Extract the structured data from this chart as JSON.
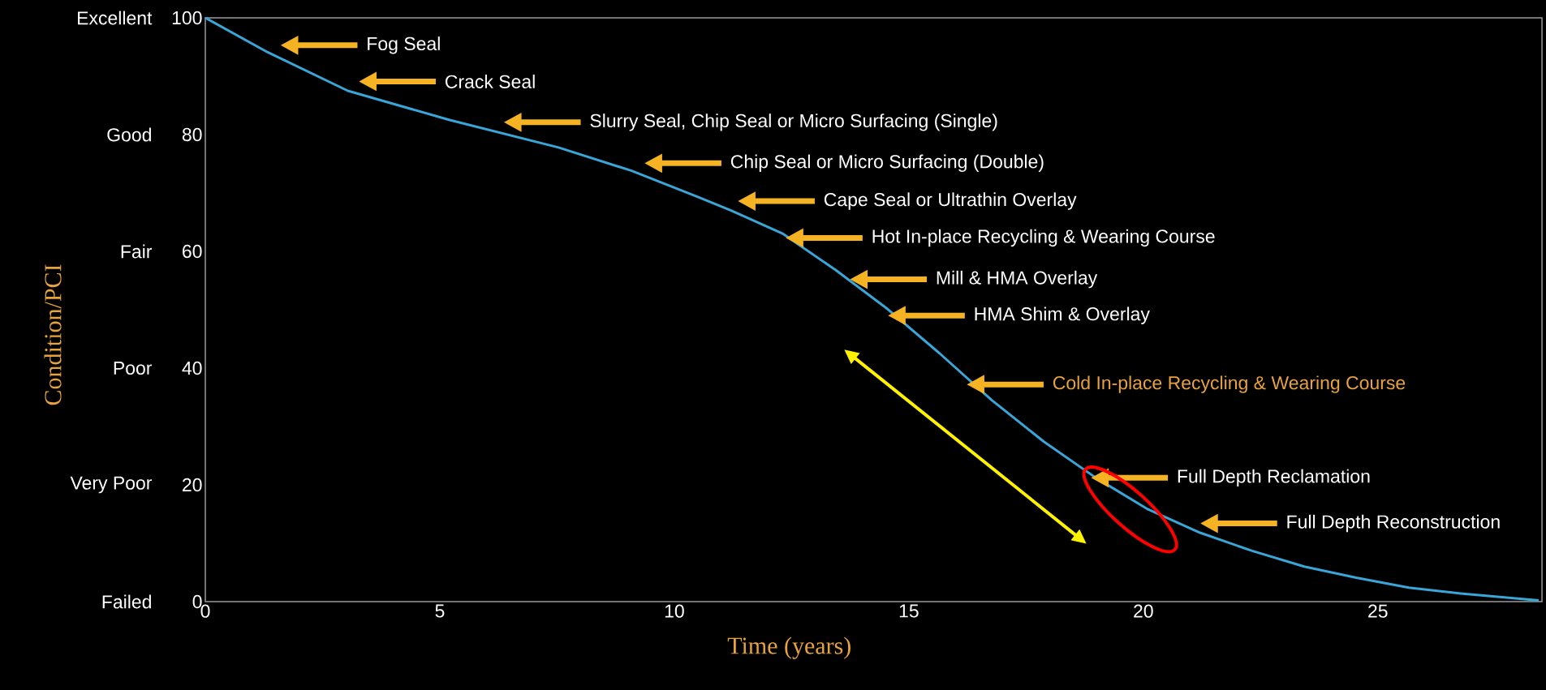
{
  "chart_data": {
    "type": "line",
    "xlabel": "Time (years)",
    "ylabel": "Condition/PCI",
    "xlim": [
      0,
      28.5
    ],
    "xticks": [
      0,
      5,
      10,
      15,
      20,
      25
    ],
    "ylim": [
      0,
      100
    ],
    "yticks": [
      0,
      20,
      40,
      60,
      80,
      100
    ],
    "grid": false,
    "marker": "none",
    "line_style": "solid",
    "series": [
      {
        "color": "#3aa6d8",
        "x": [
          0,
          1.33,
          3.04,
          5.21,
          7.53,
          9.09,
          10.48,
          11.21,
          12.32,
          13.44,
          14.55,
          15.66,
          16.77,
          17.88,
          18.99,
          20.1,
          21.21,
          22.32,
          23.43,
          24.54,
          25.66,
          26.77,
          28.43
        ],
        "values": [
          100,
          94.1,
          87.5,
          82.5,
          77.8,
          73.8,
          69.4,
          67.0,
          63.0,
          56.8,
          50.1,
          42.5,
          34.5,
          27.4,
          21.2,
          15.8,
          11.8,
          8.7,
          6.0,
          4.1,
          2.4,
          1.4,
          0.2
        ]
      }
    ],
    "annotations": [
      "Fog Seal",
      "Crack Seal",
      "Slurry Seal, Chip Seal or Micro Surfacing (Single)",
      "Chip Seal or Micro Surfacing (Double)",
      "Cape Seal or Ultrathin Overlay",
      "Hot In-place Recycling & Wearing Course",
      "Mill & HMA Overlay",
      "HMA Shim & Overlay",
      "Cold In-place Recycling & Wearing Course",
      "Full Depth Reclamation",
      "Full Depth Reconstruction",
      "Failed",
      "Very Poor",
      "Poor",
      "Fair",
      "Good",
      "Excellent"
    ]
  }
}
